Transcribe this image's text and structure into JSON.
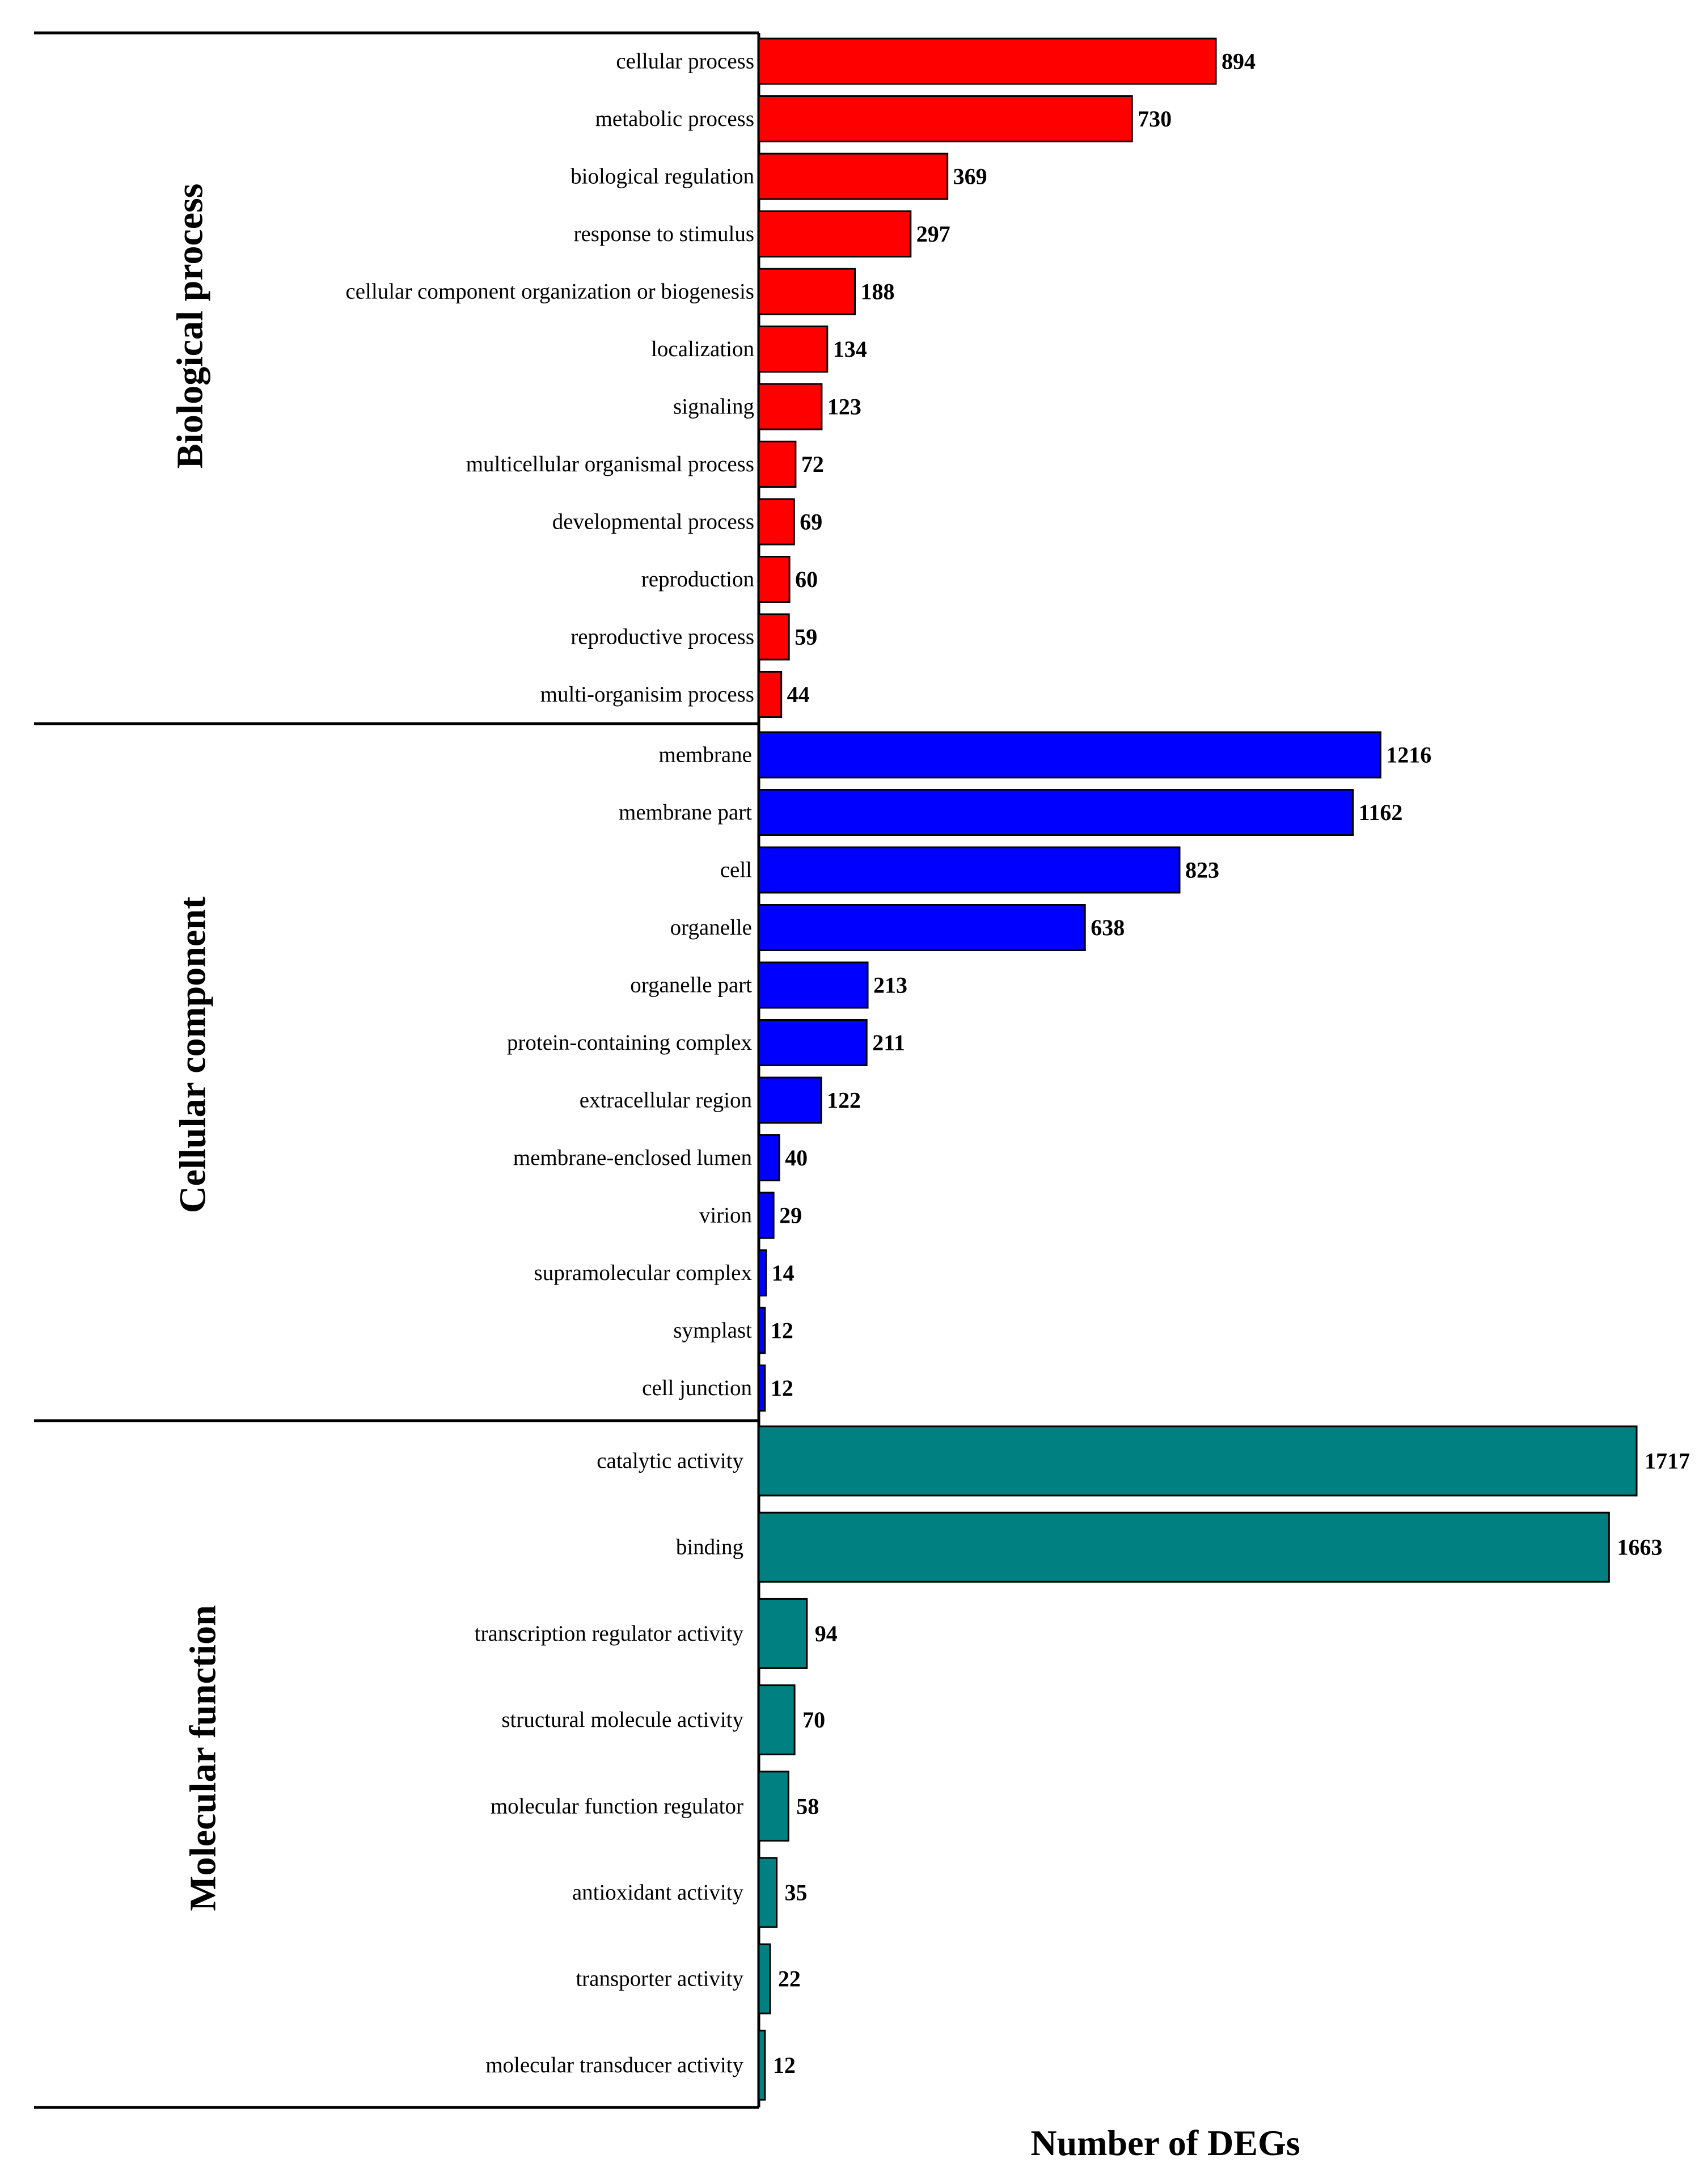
{
  "chart_data": {
    "type": "bar",
    "orientation": "horizontal",
    "xlabel": "Number of DEGs",
    "groups": [
      {
        "name": "Biological process",
        "color": "#ff0000",
        "categories": [
          "cellular process",
          "metabolic process",
          "biological regulation",
          "response to stimulus",
          "cellular component organization or biogenesis",
          "localization",
          "signaling",
          "multicellular organismal process",
          "developmental process",
          "reproduction",
          "reproductive process",
          "multi-organisim process"
        ],
        "values": [
          894,
          730,
          369,
          297,
          188,
          134,
          123,
          72,
          69,
          60,
          59,
          44
        ],
        "value_labels": [
          "894",
          "730",
          "369",
          "297",
          "188",
          "134",
          "123",
          "72",
          "69",
          "60",
          "59",
          "44"
        ]
      },
      {
        "name": "Cellular component",
        "color": "#0000ff",
        "categories": [
          "membrane",
          "membrane part",
          "cell",
          "organelle",
          "organelle part",
          "protein-containing complex",
          "extracellular region",
          "membrane-enclosed lumen",
          "virion",
          "supramolecular complex",
          "symplast",
          "cell junction"
        ],
        "values": [
          1216,
          1162,
          823,
          638,
          213,
          211,
          122,
          40,
          29,
          14,
          12,
          12
        ],
        "value_labels": [
          "1216",
          "1162",
          "823",
          "638",
          "213",
          "211",
          "122",
          "40",
          "29",
          "14",
          "12",
          "12"
        ]
      },
      {
        "name": "Molecular function",
        "color": "#008080",
        "categories": [
          "catalytic activity",
          "binding",
          "transcription regulator activity",
          "structural molecule activity",
          "molecular function regulator",
          "antioxidant activity",
          "transporter activity",
          "molecular transducer activity"
        ],
        "values": [
          1717,
          1663,
          94,
          70,
          58,
          35,
          22,
          12
        ],
        "value_labels": [
          "1717",
          "1663",
          "94",
          "70",
          "58",
          "35",
          "22",
          "12"
        ]
      }
    ]
  }
}
